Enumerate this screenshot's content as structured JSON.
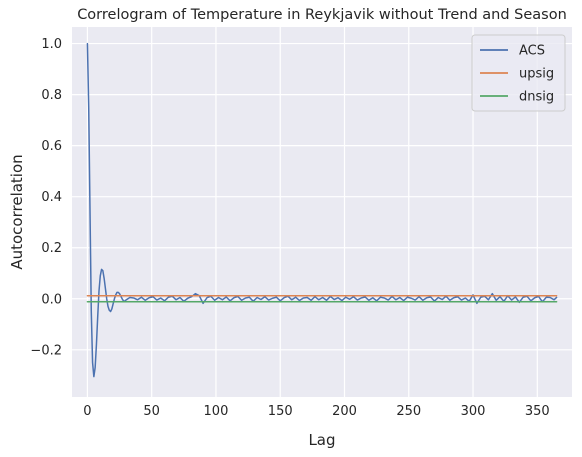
{
  "chart_data": {
    "type": "line",
    "title": "Correlogram of Temperature in Reykjavik without Trend and Season",
    "xlabel": "Lag",
    "ylabel": "Autocorrelation",
    "xlim": [
      -12,
      377
    ],
    "ylim": [
      -0.385,
      1.065
    ],
    "xticks": [
      0,
      50,
      100,
      150,
      200,
      250,
      300,
      350
    ],
    "xtick_labels": [
      "0",
      "50",
      "100",
      "150",
      "200",
      "250",
      "300",
      "350"
    ],
    "yticks": [
      -0.2,
      0.0,
      0.2,
      0.4,
      0.6,
      0.8,
      1.0
    ],
    "ytick_labels": [
      "−0.2",
      "0.0",
      "0.2",
      "0.4",
      "0.6",
      "0.8",
      "1.0"
    ],
    "grid": true,
    "legend_position": "top-right",
    "series": [
      {
        "name": "ACS",
        "color": "#4c72b0",
        "x": [
          0,
          1,
          2,
          3,
          4,
          5,
          6,
          7,
          8,
          9,
          10,
          11,
          12,
          13,
          14,
          15,
          16,
          17,
          18,
          19,
          20,
          21,
          22,
          23,
          24,
          25,
          26,
          27,
          28,
          29,
          30,
          33,
          36,
          39,
          42,
          45,
          48,
          51,
          54,
          57,
          60,
          63,
          66,
          69,
          72,
          75,
          78,
          81,
          84,
          87,
          90,
          93,
          96,
          99,
          102,
          105,
          108,
          111,
          114,
          117,
          120,
          123,
          126,
          129,
          132,
          135,
          138,
          141,
          144,
          147,
          150,
          153,
          156,
          159,
          162,
          165,
          168,
          171,
          174,
          177,
          180,
          183,
          186,
          189,
          192,
          195,
          198,
          201,
          204,
          207,
          210,
          213,
          216,
          219,
          222,
          225,
          228,
          231,
          234,
          237,
          240,
          243,
          246,
          249,
          252,
          255,
          258,
          261,
          264,
          267,
          270,
          273,
          276,
          279,
          282,
          285,
          288,
          291,
          294,
          297,
          300,
          303,
          306,
          309,
          312,
          315,
          318,
          321,
          324,
          327,
          330,
          333,
          336,
          339,
          342,
          345,
          348,
          351,
          354,
          357,
          360,
          363,
          365
        ],
        "y": [
          1.0,
          0.75,
          0.35,
          -0.05,
          -0.25,
          -0.305,
          -0.27,
          -0.18,
          -0.07,
          0.03,
          0.09,
          0.115,
          0.11,
          0.08,
          0.04,
          0.0,
          -0.03,
          -0.045,
          -0.05,
          -0.04,
          -0.02,
          0.0,
          0.015,
          0.025,
          0.025,
          0.02,
          0.01,
          0.0,
          -0.008,
          -0.01,
          -0.005,
          0.005,
          0.003,
          -0.004,
          0.006,
          -0.006,
          0.004,
          0.008,
          -0.005,
          0.003,
          -0.008,
          0.006,
          0.01,
          -0.004,
          0.005,
          -0.01,
          0.002,
          0.008,
          0.02,
          0.012,
          -0.018,
          0.004,
          0.01,
          -0.006,
          0.005,
          -0.004,
          0.007,
          -0.008,
          0.004,
          0.009,
          -0.006,
          0.003,
          0.006,
          -0.01,
          0.005,
          -0.003,
          0.008,
          -0.005,
          0.002,
          0.006,
          -0.008,
          0.004,
          0.01,
          -0.004,
          0.006,
          -0.007,
          0.003,
          0.005,
          -0.006,
          0.008,
          -0.004,
          0.005,
          -0.006,
          0.009,
          -0.003,
          0.004,
          -0.007,
          0.006,
          -0.002,
          0.008,
          -0.005,
          0.003,
          0.007,
          -0.006,
          0.004,
          -0.008,
          0.006,
          0.003,
          -0.005,
          0.009,
          -0.004,
          0.005,
          -0.007,
          0.006,
          0.002,
          -0.005,
          0.008,
          -0.006,
          0.004,
          0.007,
          -0.009,
          0.005,
          -0.003,
          0.01,
          -0.006,
          0.004,
          0.008,
          -0.005,
          0.003,
          -0.01,
          0.015,
          -0.018,
          0.006,
          0.01,
          -0.004,
          0.02,
          -0.006,
          0.008,
          -0.01,
          0.012,
          -0.005,
          0.007,
          -0.014,
          0.006,
          0.01,
          -0.008,
          0.004,
          0.009,
          -0.012,
          0.006,
          0.005,
          -0.004,
          0.005
        ]
      },
      {
        "name": "upsig",
        "color": "#dd8452",
        "x": [
          0,
          365
        ],
        "y": [
          0.0118,
          0.0118
        ]
      },
      {
        "name": "dnsig",
        "color": "#55a868",
        "x": [
          0,
          365
        ],
        "y": [
          -0.0118,
          -0.0118
        ]
      }
    ]
  }
}
